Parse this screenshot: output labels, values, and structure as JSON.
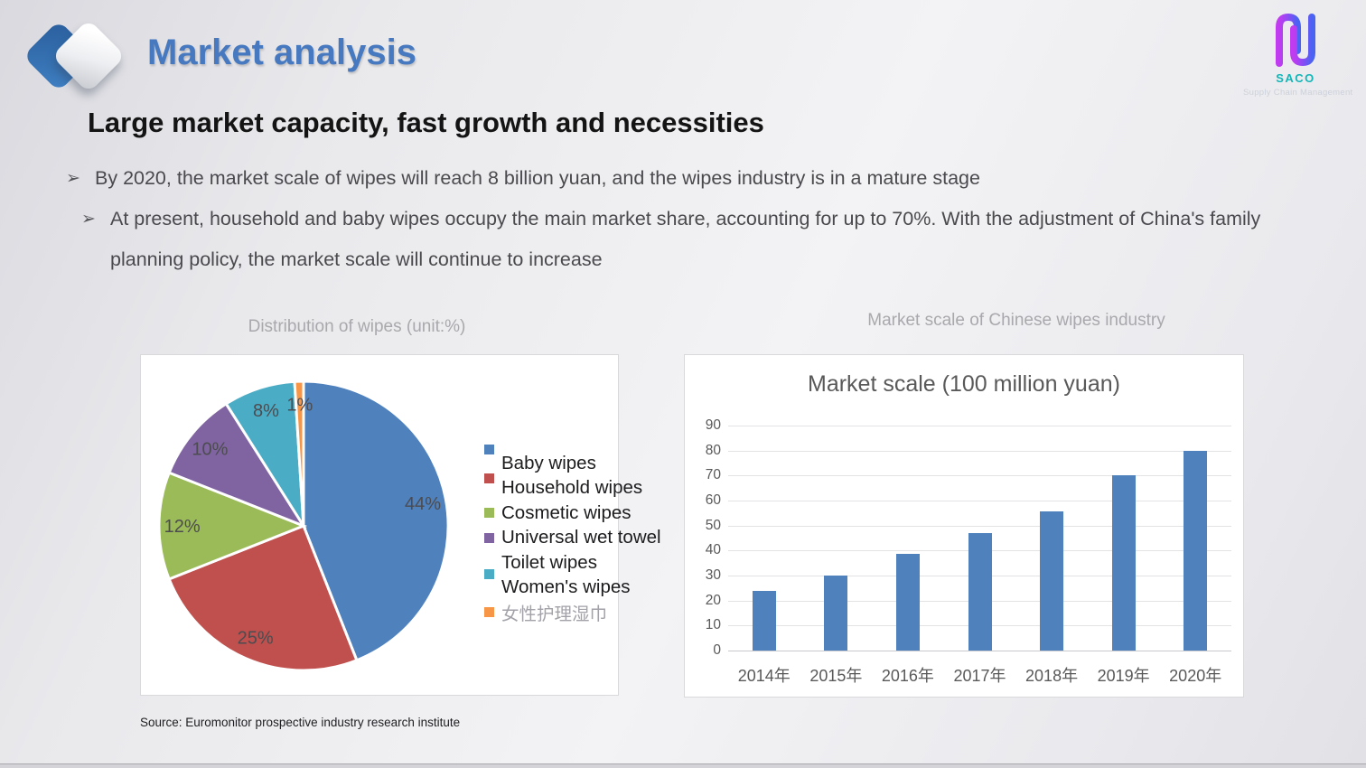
{
  "slide": {
    "header": {
      "title": "Market analysis"
    },
    "brand": {
      "name": "SACO",
      "subtitle": "Supply Chain Management",
      "accent_color": "#13b5b7"
    },
    "headline": "Large market capacity, fast growth and necessities",
    "bullet_marker": "➢",
    "bullets": [
      "By 2020, the market scale of wipes will reach 8 billion yuan, and the wipes industry is in a mature stage",
      "At present, household and baby wipes occupy the main market share, accounting for up to 70%. With the adjustment of China's family planning policy, the market scale will continue to increase"
    ],
    "source": "Source: Euromonitor prospective industry research institute"
  },
  "chart_data": [
    {
      "type": "pie",
      "title": "Distribution of wipes (unit:%)",
      "legend_position": "right",
      "start_angle": "12 o'clock, clockwise",
      "slices": [
        {
          "label": "Baby wipes",
          "value": 44,
          "data_label": "44%",
          "color": "#4f81bd"
        },
        {
          "label": "Household wipes",
          "value": 25,
          "data_label": "25%",
          "color": "#c0504d"
        },
        {
          "label": "Cosmetic wipes",
          "value": 12,
          "data_label": "12%",
          "color": "#9bbb59"
        },
        {
          "label": "Universal wet towel",
          "value": 10,
          "data_label": "10%",
          "color": "#8064a2"
        },
        {
          "label": "Toilet wipes",
          "value": 8,
          "data_label": "8%",
          "color": "#4bacc6"
        },
        {
          "label": "Women's wipes",
          "label_cn": "女性护理湿巾",
          "value": 1,
          "data_label": "1%",
          "color": "#f79646"
        }
      ]
    },
    {
      "type": "bar",
      "caption": "Market scale of Chinese wipes industry",
      "title": "Market scale (100 million yuan)",
      "categories": [
        "2014年",
        "2015年",
        "2016年",
        "2017年",
        "2018年",
        "2019年",
        "2020年"
      ],
      "values": [
        24,
        30,
        38.5,
        47,
        55.5,
        70,
        80
      ],
      "ylim": [
        0,
        90
      ],
      "ytick_step": 10,
      "bar_color": "#4f81bd",
      "grid": true,
      "legend": "none"
    }
  ]
}
